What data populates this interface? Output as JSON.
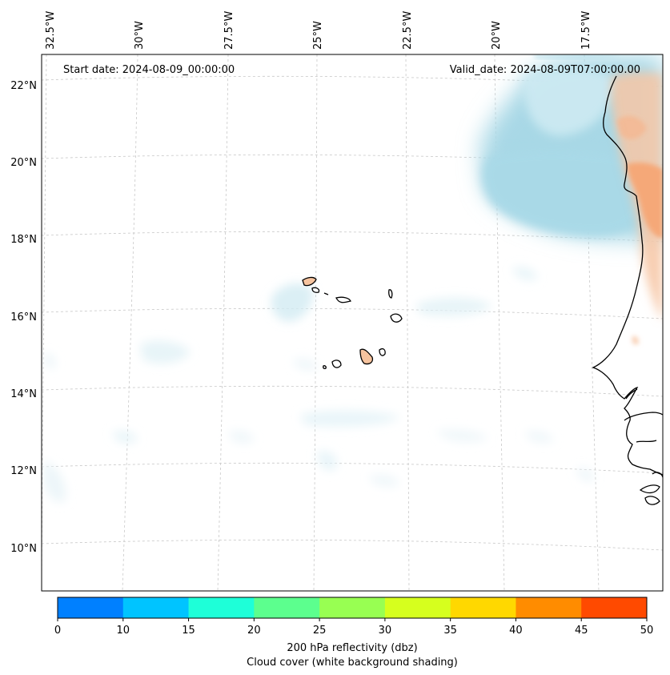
{
  "map": {
    "start_date": "Start date: 2024-08-09_00:00:00",
    "valid_date": "Valid_date: 2024-08-09T07:00:00.00",
    "lon_labels": [
      "32.5°W",
      "30°W",
      "27.5°W",
      "25°W",
      "22.5°W",
      "20°W",
      "17.5°W"
    ],
    "lat_labels": [
      "22°N",
      "20°N",
      "18°N",
      "16°N",
      "14°N",
      "12°N",
      "10°N"
    ]
  },
  "colorbar": {
    "ticks": [
      "0",
      "10",
      "15",
      "20",
      "25",
      "30",
      "35",
      "40",
      "45",
      "50"
    ],
    "colors": [
      "#0080ff",
      "#00c4ff",
      "#1effd8",
      "#5cff8e",
      "#98ff52",
      "#d6ff1e",
      "#ffd800",
      "#ff8c00",
      "#ff4a00"
    ],
    "label_line1": "200 hPa reflectivity (dbz)",
    "label_line2": "Cloud cover (white background shading)"
  },
  "colors": {
    "cloud_blue": "#a8d8e6",
    "reflectivity_orange": "#f5a878",
    "coastline": "#000000"
  }
}
